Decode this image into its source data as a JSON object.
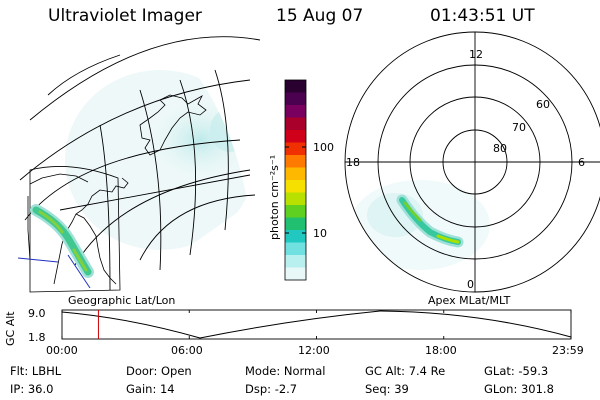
{
  "header": {
    "instrument": "Ultraviolet Imager",
    "date": "15 Aug 07",
    "time": "01:43:51 UT"
  },
  "colorbar": {
    "label": "photon cm⁻²s⁻¹",
    "ticks": [
      "100",
      "10"
    ],
    "colors_top_to_bottom": [
      "#2a0030",
      "#4b0050",
      "#7a0060",
      "#a8002a",
      "#d0001a",
      "#f03000",
      "#ff7a00",
      "#ffb800",
      "#f5e000",
      "#b8e000",
      "#60d020",
      "#20c070",
      "#20c8c0",
      "#70e0e0",
      "#b8f0f0",
      "#e8f8f8"
    ]
  },
  "left_panel": {
    "label": "Geographic Lat/Lon"
  },
  "right_panel": {
    "label": "Apex MLat/MLT",
    "mlt_labels": {
      "top": "12",
      "left": "18",
      "right": "6",
      "bottom": "0"
    },
    "lat_labels": [
      "60",
      "70",
      "80"
    ]
  },
  "altitude_plot": {
    "ylabel": "GC Alt",
    "yticks": [
      "9.0",
      "1.8"
    ],
    "xticks": [
      "00:00",
      "06:00",
      "12:00",
      "18:00",
      "23:59"
    ],
    "marker_time": "01:43",
    "marker_color": "#cc0000"
  },
  "status": {
    "row1": [
      {
        "label": "Flt:",
        "value": "LBHL"
      },
      {
        "label": "Door:",
        "value": "Open"
      },
      {
        "label": "Mode:",
        "value": "Normal"
      },
      {
        "label": "GC Alt:",
        "value": "7.4 Re"
      },
      {
        "label": "GLat:",
        "value": "-59.3"
      }
    ],
    "row2": [
      {
        "label": "IP:",
        "value": "36.0"
      },
      {
        "label": "Gain:",
        "value": "14"
      },
      {
        "label": "Dsp:",
        "value": "-2.7"
      },
      {
        "label": "Seq:",
        "value": "39"
      },
      {
        "label": "GLon:",
        "value": "301.8"
      }
    ]
  }
}
